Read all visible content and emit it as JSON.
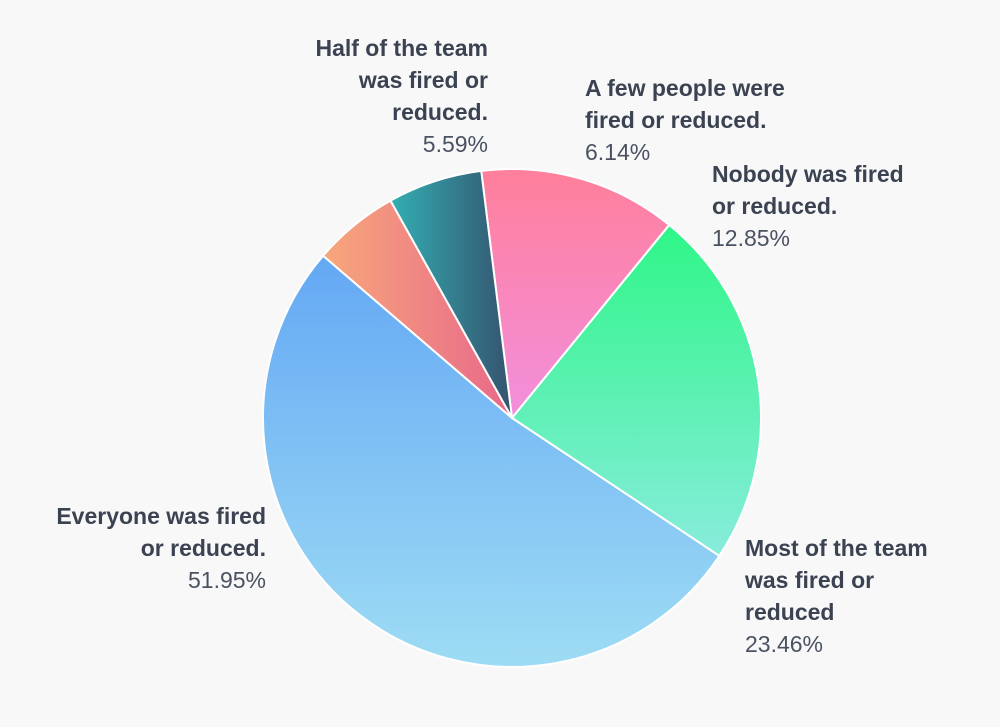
{
  "chart_data": {
    "type": "pie",
    "title": "",
    "slices": [
      {
        "name": "Nobody was fired\nor reduced.",
        "value": 12.85,
        "pct_label": "12.85%",
        "colors": [
          "#ff7f9b",
          "#f28fdc"
        ]
      },
      {
        "name": "Most of the team\nwas fired or\nreduced",
        "value": 23.46,
        "pct_label": "23.46%",
        "colors": [
          "#2ef687",
          "#88ecdc"
        ]
      },
      {
        "name": "Everyone was fired\nor reduced.",
        "value": 51.95,
        "pct_label": "51.95%",
        "colors": [
          "#64a8f4",
          "#9edcf4"
        ]
      },
      {
        "name": "Half of the team\nwas fired or\nreduced.",
        "value": 5.59,
        "pct_label": "5.59%",
        "colors": [
          "#f7a77b",
          "#e8688a"
        ]
      },
      {
        "name": "A few people were\nfired or reduced.",
        "value": 6.14,
        "pct_label": "6.14%",
        "colors": [
          "#33aeb2",
          "#35526e"
        ]
      }
    ]
  }
}
